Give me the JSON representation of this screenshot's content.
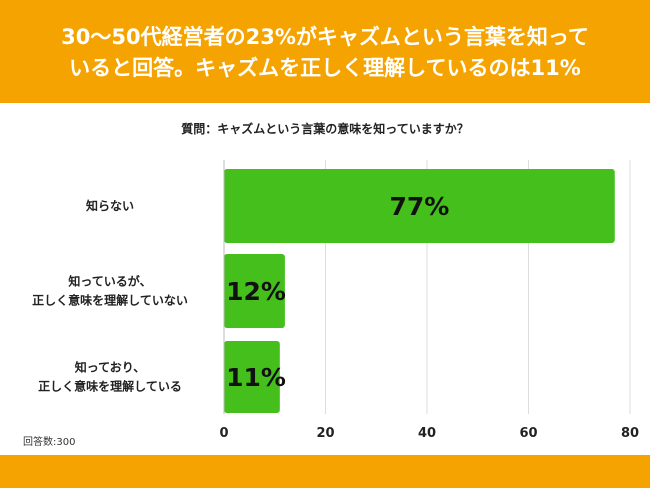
{
  "header": {
    "title_line1": "30〜50代経営者の23%がキャズムという言葉を知って",
    "title_line2": "いると回答。キャズムを正しく理解しているのは11%"
  },
  "question": "質問：キャズムという言葉の意味を知っていますか？",
  "note": "回答数:300",
  "colors": {
    "header": "#f5a300",
    "bar": "#44bf1c",
    "grid": "#dddddd",
    "label": "#222222"
  },
  "chart_data": {
    "type": "bar",
    "orientation": "horizontal",
    "categories": [
      [
        "知らない"
      ],
      [
        "知っているが、",
        "正しく意味を理解していない"
      ],
      [
        "知っており、",
        "正しく意味を理解している"
      ]
    ],
    "values": [
      77,
      12,
      11
    ],
    "value_labels": [
      "77%",
      "12%",
      "11%"
    ],
    "xlim": [
      0,
      80
    ],
    "xticks": [
      0,
      20,
      40,
      60,
      80
    ],
    "grid": true
  }
}
